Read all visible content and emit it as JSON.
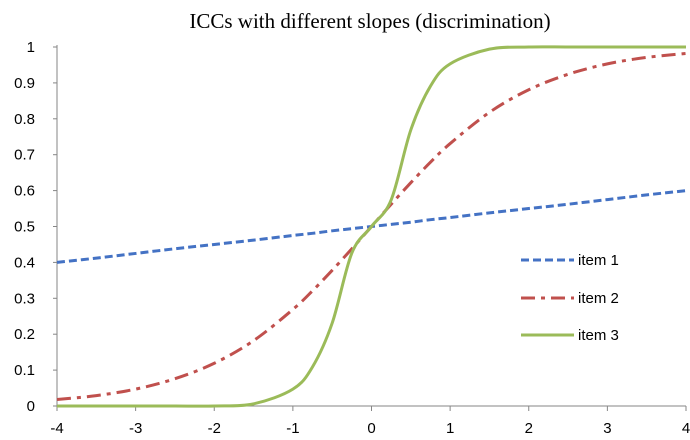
{
  "chart_data": {
    "type": "line",
    "title": "ICCs with different slopes (discrimination)",
    "xlabel": "",
    "ylabel": "",
    "xlim": [
      -4,
      4
    ],
    "ylim": [
      0,
      1
    ],
    "x_ticks": [
      -4,
      -3,
      -2,
      -1,
      0,
      1,
      2,
      3,
      4
    ],
    "y_ticks": [
      0,
      0.1,
      0.2,
      0.3,
      0.4,
      0.5,
      0.6,
      0.7,
      0.8,
      0.9,
      1
    ],
    "grid": false,
    "legend_position": "right",
    "x": [
      -4,
      -3.5,
      -3,
      -2.5,
      -2,
      -1.5,
      -1,
      -0.75,
      -0.5,
      -0.25,
      0,
      0.25,
      0.5,
      0.75,
      1,
      1.5,
      2,
      2.5,
      3,
      3.5,
      4
    ],
    "series": [
      {
        "name": "item 1",
        "color": "#4472C4",
        "dash": "dashed",
        "values": [
          0.4,
          0.412,
          0.425,
          0.438,
          0.45,
          0.462,
          0.475,
          0.481,
          0.488,
          0.494,
          0.5,
          0.506,
          0.512,
          0.519,
          0.525,
          0.538,
          0.55,
          0.562,
          0.575,
          0.588,
          0.6
        ]
      },
      {
        "name": "item 2",
        "color": "#C0504D",
        "dash": "dash-dot",
        "values": [
          0.018,
          0.029,
          0.047,
          0.076,
          0.119,
          0.182,
          0.269,
          0.321,
          0.378,
          0.438,
          0.5,
          0.562,
          0.622,
          0.679,
          0.731,
          0.818,
          0.881,
          0.924,
          0.953,
          0.971,
          0.982
        ]
      },
      {
        "name": "item 3",
        "color": "#9BBB59",
        "dash": "solid",
        "values": [
          0.0,
          0.0,
          0.0,
          0.0,
          0.0,
          0.006,
          0.047,
          0.109,
          0.231,
          0.426,
          0.5,
          0.574,
          0.769,
          0.891,
          0.953,
          0.994,
          1.0,
          1.0,
          1.0,
          1.0,
          1.0
        ]
      }
    ]
  }
}
